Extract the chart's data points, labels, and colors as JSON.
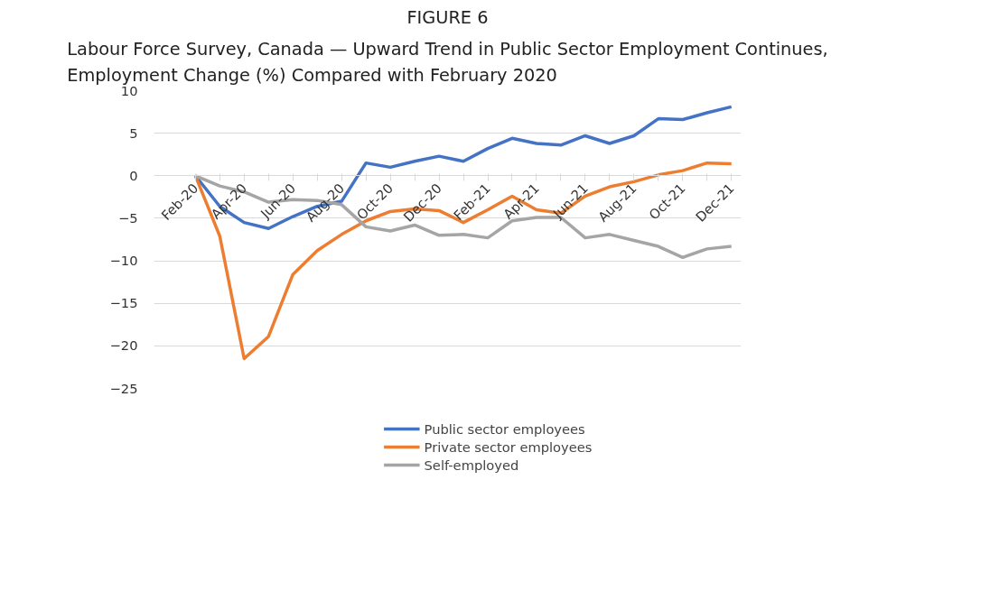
{
  "chart_data": {
    "type": "line",
    "title": "FIGURE 6",
    "subtitle": "Labour Force Survey, Canada — Upward Trend in Public Sector Employment Continues,\nEmployment Change (%) Compared with February 2020",
    "categories": [
      "Feb-20",
      null,
      "Apr-20",
      null,
      "Jun-20",
      null,
      "Aug-20",
      null,
      "Oct-20",
      null,
      "Dec-20",
      null,
      "Feb-21",
      null,
      "Apr-21",
      null,
      "Jun-21",
      null,
      "Aug-21",
      null,
      "Oct-21",
      null,
      "Dec-21"
    ],
    "series": [
      {
        "name": "Public sector employees",
        "color": "#4472c4",
        "values": [
          0,
          -3.6,
          -5.5,
          -6.2,
          -4.8,
          -3.6,
          -3.0,
          1.5,
          1.0,
          1.7,
          2.3,
          1.7,
          3.2,
          4.4,
          3.8,
          3.6,
          4.7,
          3.8,
          4.7,
          6.7,
          6.6,
          7.4,
          8.1
        ]
      },
      {
        "name": "Private sector employees",
        "color": "#ed7d31",
        "values": [
          0,
          -7.1,
          -21.5,
          -18.9,
          -11.6,
          -8.8,
          -6.9,
          -5.3,
          -4.2,
          -3.9,
          -4.1,
          -5.5,
          -4.0,
          -2.4,
          -4.0,
          -4.4,
          -2.4,
          -1.3,
          -0.7,
          0.1,
          0.6,
          1.5,
          1.4
        ]
      },
      {
        "name": "Self-employed",
        "color": "#a5a5a5",
        "values": [
          0,
          -1.2,
          -1.9,
          -3.1,
          -2.8,
          -2.9,
          -3.4,
          -6.0,
          -6.5,
          -5.8,
          -7.0,
          -6.9,
          -7.3,
          -5.3,
          -4.9,
          -4.9,
          -7.3,
          -6.9,
          -7.6,
          -8.3,
          -9.6,
          -8.6,
          -8.3
        ]
      }
    ],
    "ylim": [
      -25,
      10
    ],
    "yticks": [
      -25,
      -20,
      -15,
      -10,
      -5,
      0,
      5,
      10
    ],
    "grid": "y",
    "legend": "bottom",
    "marker": "none",
    "line_style": "solid"
  }
}
